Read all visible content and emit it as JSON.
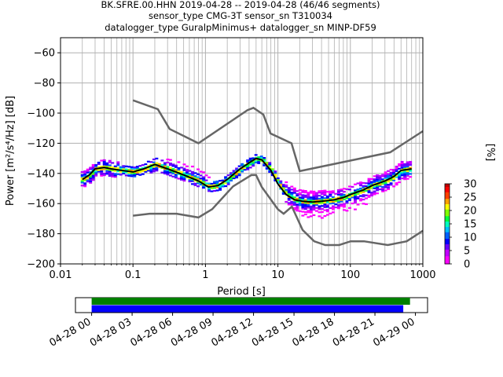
{
  "chart_data": [
    {
      "type": "heatmap",
      "title": [
        "BK.SFRE.00.HHN   2019-04-28 -- 2019-04-28  (46/46 segments)",
        "sensor_type CMG-3T sensor_sn T310034",
        "datalogger_type GuralpMinimus+ datalogger_sn MINP-DF59"
      ],
      "xlabel": "Period [s]",
      "ylabel": "Power [m²/s⁴/Hz] [dB]",
      "xscale": "log",
      "xlim": [
        0.01,
        1000
      ],
      "ylim": [
        -200,
        -50
      ],
      "xticks": [
        {
          "value": 0.01,
          "label": "0.01"
        },
        {
          "value": 0.1,
          "label": "0.1"
        },
        {
          "value": 1,
          "label": "1"
        },
        {
          "value": 10,
          "label": "10"
        },
        {
          "value": 100,
          "label": "100"
        },
        {
          "value": 1000,
          "label": "1000"
        }
      ],
      "yticks": [
        {
          "value": -60,
          "label": "−60"
        },
        {
          "value": -80,
          "label": "−80"
        },
        {
          "value": -100,
          "label": "−100"
        },
        {
          "value": -120,
          "label": "−120"
        },
        {
          "value": -140,
          "label": "−140"
        },
        {
          "value": -160,
          "label": "−160"
        },
        {
          "value": -180,
          "label": "−180"
        },
        {
          "value": -200,
          "label": "−200"
        }
      ],
      "grid": true,
      "noise_models": {
        "high": {
          "period": [
            0.1,
            0.22,
            0.32,
            0.8,
            3.8,
            4.6,
            6.3,
            7.9,
            15.4,
            20,
            354.8,
            1000
          ],
          "db": [
            -91.5,
            -97.4,
            -110.5,
            -120,
            -98,
            -96.5,
            -101,
            -113.5,
            -120,
            -138.5,
            -126,
            -112
          ]
        },
        "low": {
          "period": [
            0.1,
            0.17,
            0.4,
            0.8,
            1.24,
            2.4,
            4.3,
            5,
            6,
            10,
            12,
            15.6,
            21.9,
            31.6,
            45,
            70,
            101,
            154,
            328,
            600,
            1000
          ],
          "db": [
            -168,
            -166.7,
            -166.7,
            -169.2,
            -163.7,
            -148.6,
            -141.1,
            -141.1,
            -149,
            -163.8,
            -166.7,
            -162,
            -177.5,
            -185,
            -187.5,
            -187.5,
            -185,
            -185,
            -187.5,
            -185,
            -178
          ]
        }
      },
      "median": {
        "period": [
          0.02,
          0.025,
          0.03,
          0.04,
          0.05,
          0.07,
          0.1,
          0.14,
          0.2,
          0.3,
          0.5,
          0.8,
          1.1,
          1.5,
          2,
          3,
          4,
          5,
          6,
          8,
          10,
          13,
          17,
          22,
          30,
          40,
          60,
          80,
          100,
          150,
          200,
          300,
          400,
          500,
          700
        ],
        "db": [
          -144,
          -141,
          -137,
          -136,
          -137,
          -138,
          -139,
          -137,
          -134,
          -137,
          -141,
          -145,
          -149,
          -148,
          -144,
          -137,
          -133,
          -130,
          -131,
          -138,
          -147,
          -154,
          -157.5,
          -158.5,
          -159,
          -158.5,
          -157.5,
          -156,
          -154,
          -151,
          -148,
          -145,
          -142,
          -138,
          -137
        ]
      },
      "colorbar": {
        "label": "[%]",
        "min": 0,
        "max": 30,
        "ticks": [
          "0",
          "5",
          "10",
          "15",
          "20",
          "25",
          "30"
        ]
      }
    },
    {
      "type": "timeline",
      "start": "2019-04-28 00",
      "end": "2019-04-29 00",
      "tick_labels": [
        "04-28 00",
        "04-28 03",
        "04-28 06",
        "04-28 09",
        "04-28 12",
        "04-28 15",
        "04-28 18",
        "04-28 21",
        "04-29 00"
      ],
      "bars": [
        {
          "color": "#008000",
          "start_hour": 0,
          "end_hour": 23.6
        },
        {
          "color": "#0000ff",
          "start_hour": 0,
          "end_hour": 23.1
        }
      ],
      "xlim_hours": [
        -1.2,
        24.9
      ]
    }
  ]
}
